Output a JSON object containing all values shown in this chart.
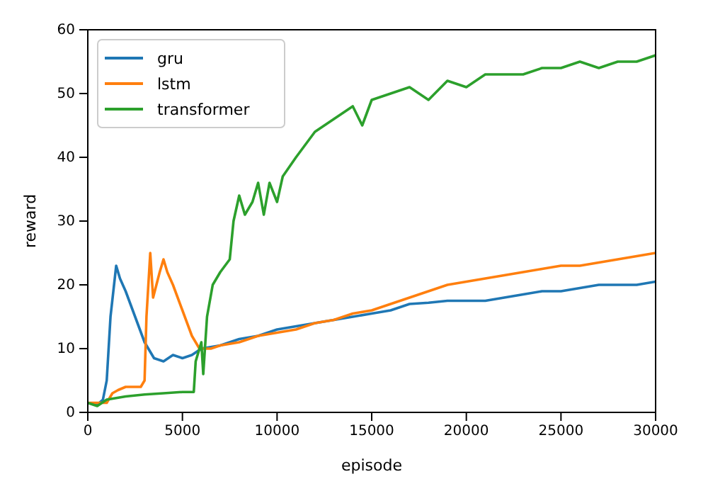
{
  "chart_data": {
    "type": "line",
    "xlabel": "episode",
    "ylabel": "reward",
    "xlim": [
      0,
      30000
    ],
    "ylim": [
      0,
      60
    ],
    "xticks": [
      0,
      5000,
      10000,
      15000,
      20000,
      25000,
      30000
    ],
    "yticks": [
      0,
      10,
      20,
      30,
      40,
      50,
      60
    ],
    "legend": "top left",
    "grid": false,
    "line_style": "solid",
    "series": [
      {
        "name": "gru",
        "color": "#1f77b4",
        "x": [
          0,
          500,
          800,
          1000,
          1200,
          1500,
          1700,
          2000,
          2500,
          3000,
          3500,
          4000,
          4500,
          5000,
          5500,
          6000,
          7000,
          8000,
          9000,
          10000,
          11000,
          12000,
          13000,
          14000,
          15000,
          16000,
          17000,
          18000,
          19000,
          20000,
          21000,
          22000,
          23000,
          24000,
          25000,
          26000,
          27000,
          28000,
          29000,
          30000
        ],
        "values": [
          1.5,
          1.2,
          2,
          5,
          15,
          23,
          21,
          19,
          15,
          11,
          8.5,
          8,
          9,
          8.5,
          9,
          10,
          10.5,
          11.5,
          12,
          13,
          13.5,
          14,
          14.5,
          15,
          15.5,
          16,
          17,
          17.2,
          17.5,
          17.5,
          17.5,
          18,
          18.5,
          19,
          19,
          19.5,
          20,
          20,
          20,
          20.5
        ]
      },
      {
        "name": "lstm",
        "color": "#ff7f0e",
        "x": [
          0,
          1000,
          1300,
          1600,
          2000,
          2800,
          3000,
          3100,
          3300,
          3450,
          3800,
          4000,
          4200,
          4500,
          5000,
          5500,
          5900,
          6500,
          7000,
          8000,
          9000,
          10000,
          11000,
          12000,
          13000,
          14000,
          15000,
          16000,
          17000,
          18000,
          19000,
          20000,
          21000,
          22000,
          23000,
          24000,
          25000,
          26000,
          27000,
          28000,
          29000,
          30000
        ],
        "values": [
          1.5,
          1.5,
          3,
          3.5,
          4,
          4,
          5,
          15,
          25,
          18,
          22,
          24,
          22,
          20,
          16,
          12,
          10,
          10,
          10.5,
          11,
          12,
          12.5,
          13,
          14,
          14.5,
          15.5,
          16,
          17,
          18,
          19,
          20,
          20.5,
          21,
          21.5,
          22,
          22.5,
          23,
          23,
          23.5,
          24,
          24.5,
          25
        ]
      },
      {
        "name": "transformer",
        "color": "#2ca02c",
        "x": [
          0,
          500,
          1000,
          2000,
          3000,
          4000,
          5000,
          5600,
          5700,
          6000,
          6100,
          6300,
          6600,
          7000,
          7500,
          7700,
          8000,
          8300,
          8700,
          9000,
          9300,
          9600,
          10000,
          10300,
          11000,
          12000,
          13000,
          14000,
          14500,
          15000,
          16000,
          17000,
          18000,
          19000,
          20000,
          21000,
          22000,
          23000,
          24000,
          25000,
          26000,
          27000,
          28000,
          29000,
          30000
        ],
        "values": [
          1.5,
          1,
          2,
          2.5,
          2.8,
          3,
          3.2,
          3.2,
          8,
          11,
          6,
          15,
          20,
          22,
          24,
          30,
          34,
          31,
          33,
          36,
          31,
          36,
          33,
          37,
          40,
          44,
          46,
          48,
          45,
          49,
          50,
          51,
          49,
          52,
          51,
          53,
          53,
          53,
          54,
          54,
          55,
          54,
          55,
          55,
          56
        ]
      }
    ]
  }
}
